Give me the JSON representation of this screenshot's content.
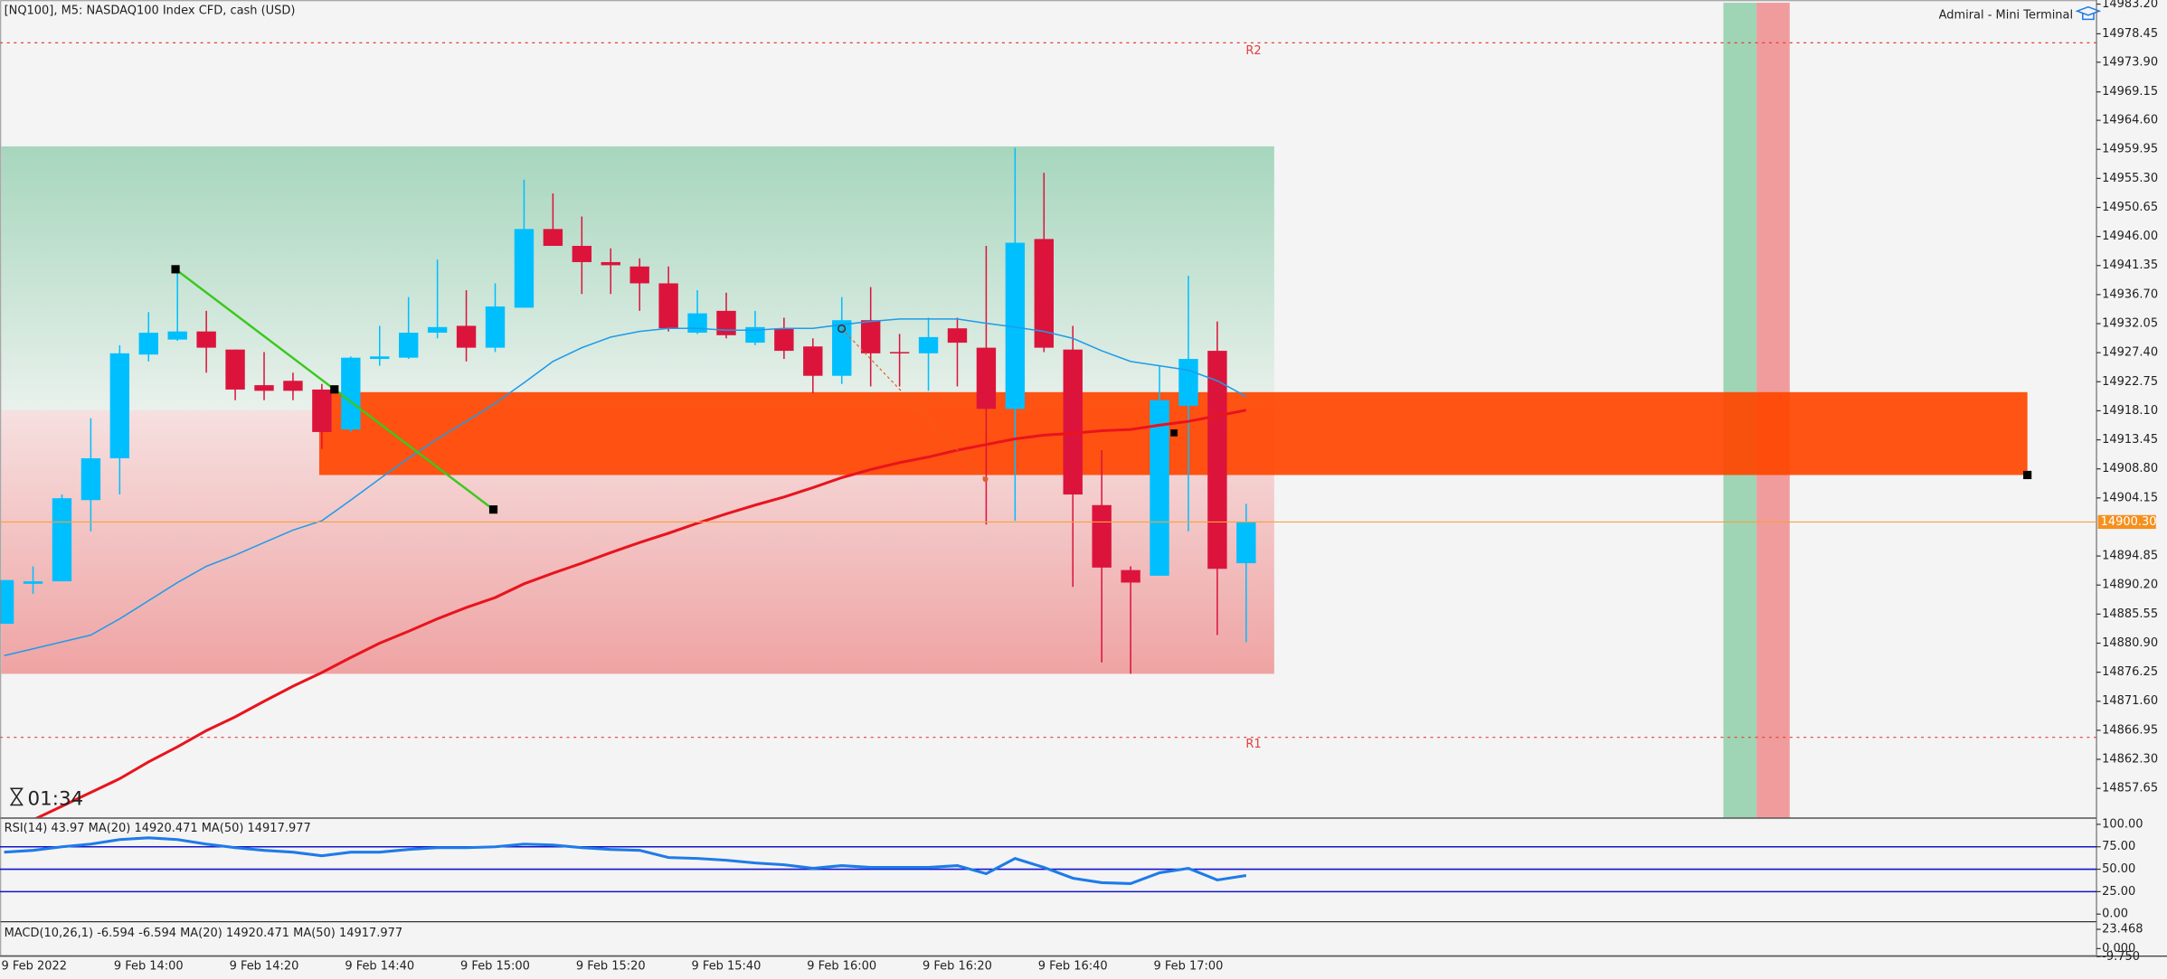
{
  "header": {
    "symbol": "[NQ100], M5:  NASDAQ100 Index CFD, cash (USD)",
    "terminal": "Admiral - Mini Terminal",
    "timer": "01:34",
    "r2": "R2",
    "r1": "R1"
  },
  "chart_data": [
    {
      "type": "candlestick",
      "categories": [
        "9 Feb 2022",
        null,
        null,
        null,
        null,
        "9 Feb 14:00",
        null,
        null,
        null,
        "9 Feb 14:20",
        null,
        null,
        null,
        "9 Feb 14:40",
        null,
        null,
        null,
        "9 Feb 15:00",
        null,
        null,
        null,
        "9 Feb 15:20",
        null,
        null,
        null,
        "9 Feb 15:40",
        null,
        null,
        null,
        "9 Feb 16:00",
        null,
        null,
        null,
        "9 Feb 16:20",
        null,
        null,
        null,
        "9 Feb 16:40",
        null,
        null,
        null,
        "9 Feb 17:00",
        null,
        null
      ],
      "open": [
        14884.0,
        14890.4,
        14890.8,
        14903.8,
        14910.5,
        14927.1,
        14929.5,
        14930.8,
        14927.9,
        14922.2,
        14922.9,
        14921.5,
        14915.1,
        14926.4,
        14926.6,
        14930.6,
        14931.7,
        14928.2,
        14934.6,
        14947.2,
        14944.5,
        14941.9,
        14941.2,
        14938.5,
        14930.6,
        14934.1,
        14929.0,
        14931.3,
        14928.4,
        14923.7,
        14932.6,
        14927.5,
        14927.3,
        14931.3,
        14928.2,
        14918.4,
        14945.6,
        14927.9,
        14903.0,
        14892.6,
        14891.7,
        14918.9,
        14927.7,
        14893.7
      ],
      "high": [
        14891.0,
        14893.2,
        14904.7,
        14916.9,
        14928.6,
        14933.9,
        14940.8,
        14934.1,
        14927.9,
        14927.5,
        14924.2,
        14922.4,
        14926.8,
        14931.7,
        14936.3,
        14942.3,
        14937.4,
        14938.5,
        14955.1,
        14952.9,
        14949.2,
        14944.1,
        14942.5,
        14941.2,
        14937.4,
        14937.0,
        14934.1,
        14933.0,
        14929.7,
        14936.3,
        14937.9,
        14930.4,
        14933.0,
        14933.0,
        14944.5,
        14960.2,
        14956.2,
        14931.7,
        14911.8,
        14893.2,
        14925.3,
        14939.7,
        14932.4,
        14903.2
      ],
      "low": [
        14884.0,
        14888.8,
        14890.8,
        14898.8,
        14904.7,
        14926.0,
        14929.3,
        14924.2,
        14919.8,
        14919.8,
        14919.8,
        14912.0,
        14914.7,
        14925.3,
        14926.4,
        14929.7,
        14926.0,
        14927.5,
        14934.6,
        14944.5,
        14936.8,
        14936.8,
        14934.1,
        14930.8,
        14930.4,
        14929.7,
        14928.6,
        14926.4,
        14920.9,
        14922.4,
        14922.0,
        14922.0,
        14921.3,
        14922.0,
        14899.9,
        14900.5,
        14927.5,
        14889.9,
        14877.8,
        14876.0,
        14891.7,
        14898.8,
        14882.2,
        14881.1
      ],
      "close": [
        14891.0,
        14890.8,
        14904.1,
        14910.5,
        14927.3,
        14930.6,
        14930.8,
        14928.2,
        14921.5,
        14921.3,
        14921.3,
        14914.7,
        14926.6,
        14926.8,
        14930.6,
        14931.5,
        14928.2,
        14934.8,
        14947.2,
        14944.5,
        14941.9,
        14941.4,
        14938.5,
        14931.3,
        14933.7,
        14930.2,
        14931.5,
        14927.7,
        14923.7,
        14932.6,
        14927.3,
        14927.3,
        14929.9,
        14929.0,
        14918.4,
        14945.0,
        14928.2,
        14904.7,
        14893.0,
        14890.6,
        14919.8,
        14926.4,
        14892.8,
        14900.3
      ],
      "up_color": "#00bfff",
      "down_color": "#dc143c",
      "overlays": [
        {
          "color": "#1e9be8",
          "width": 1,
          "values": [
            14878.9,
            14880.0,
            14881.1,
            14882.2,
            14884.8,
            14887.7,
            14890.6,
            14893.2,
            14895.0,
            14897.0,
            14899.0,
            14900.5,
            14903.8,
            14907.2,
            14910.5,
            14913.6,
            14916.4,
            14919.3,
            14922.6,
            14926.0,
            14928.2,
            14929.9,
            14930.8,
            14931.3,
            14931.3,
            14931.0,
            14931.0,
            14931.3,
            14931.3,
            14931.9,
            14932.4,
            14932.8,
            14932.8,
            14932.8,
            14932.1,
            14931.5,
            14930.8,
            14929.7,
            14927.7,
            14926.0,
            14925.3,
            14924.6,
            14922.9,
            14920.4
          ]
        },
        {
          "color": "#e8141e",
          "width": 2,
          "values": [
            14851.2,
            14852.6,
            14854.8,
            14857.0,
            14859.2,
            14861.9,
            14864.3,
            14866.9,
            14869.1,
            14871.6,
            14874.0,
            14876.2,
            14878.6,
            14880.9,
            14882.8,
            14884.8,
            14886.6,
            14888.2,
            14890.4,
            14892.1,
            14893.7,
            14895.4,
            14897.0,
            14898.5,
            14900.1,
            14901.6,
            14903.0,
            14904.3,
            14905.8,
            14907.4,
            14908.7,
            14909.8,
            14910.7,
            14911.8,
            14912.7,
            14913.6,
            14914.2,
            14914.5,
            14914.9,
            14915.1,
            14915.8,
            14916.4,
            14917.3,
            14918.2
          ]
        }
      ],
      "current_price": {
        "value": 14900.3,
        "label": "14900.30"
      },
      "ylim": [
        14853.0,
        14983.86
      ],
      "yticks": [
        {
          "value": 14983.2,
          "label": "14983.20"
        },
        14978.45,
        {
          "value": 14973.9,
          "label": "14973.90"
        },
        14969.15,
        {
          "value": 14964.6,
          "label": "14964.60"
        },
        14959.95,
        {
          "value": 14955.3,
          "label": "14955.30"
        },
        14950.65,
        {
          "value": 14946,
          "label": "14946.00"
        },
        14941.35,
        {
          "value": 14936.7,
          "label": "14936.70"
        },
        14932.05,
        {
          "value": 14927.4,
          "label": "14927.40"
        },
        14922.75,
        {
          "value": 14918.1,
          "label": "14918.10"
        },
        14913.45,
        {
          "value": 14908.8,
          "label": "14908.80"
        },
        14904.15,
        14894.85,
        {
          "value": 14890.2,
          "label": "14890.20"
        },
        14885.55,
        {
          "value": 14880.9,
          "label": "14880.90"
        },
        14876.25,
        {
          "value": 14871.6,
          "label": "14871.60"
        },
        14866.95,
        {
          "value": 14862.3,
          "label": "14862.30"
        },
        14857.65
      ]
    },
    {
      "type": "line",
      "title": "RSI(14) 43.97 MA(20) 14920.471 MA(50) 14917.977",
      "color": "#1e7be8",
      "values": [
        69,
        71,
        75,
        78,
        83,
        85,
        83,
        78,
        74,
        71,
        69,
        65,
        69,
        69,
        72,
        74,
        74,
        75,
        78,
        77,
        74,
        72,
        71,
        63,
        62,
        60,
        57,
        55,
        51,
        54,
        52,
        52,
        52,
        54,
        45,
        62,
        52,
        40,
        35,
        34,
        46,
        51,
        38,
        43
      ],
      "level_lines": [
        75,
        50,
        25
      ],
      "level_color": "#1414c8",
      "ylim": [
        -7.7,
        104.6
      ],
      "yticks": [
        {
          "value": 100,
          "label": "100.00"
        },
        {
          "value": 75,
          "label": "75.00"
        },
        {
          "value": 50,
          "label": "50.00"
        },
        {
          "value": 25,
          "label": "25.00"
        },
        {
          "value": 0,
          "label": "0.00"
        }
      ]
    },
    {
      "type": "indicator",
      "title": "MACD(10,26,1) -6.594 -6.594 MA(20) 14920.471 MA(50) 14917.977",
      "ylim": [
        -8.4,
        31.9
      ],
      "yticks": [
        23.468,
        {
          "value": 0,
          "label": "0.000"
        },
        {
          "value": -9.75,
          "label": "-9.750"
        }
      ]
    }
  ]
}
